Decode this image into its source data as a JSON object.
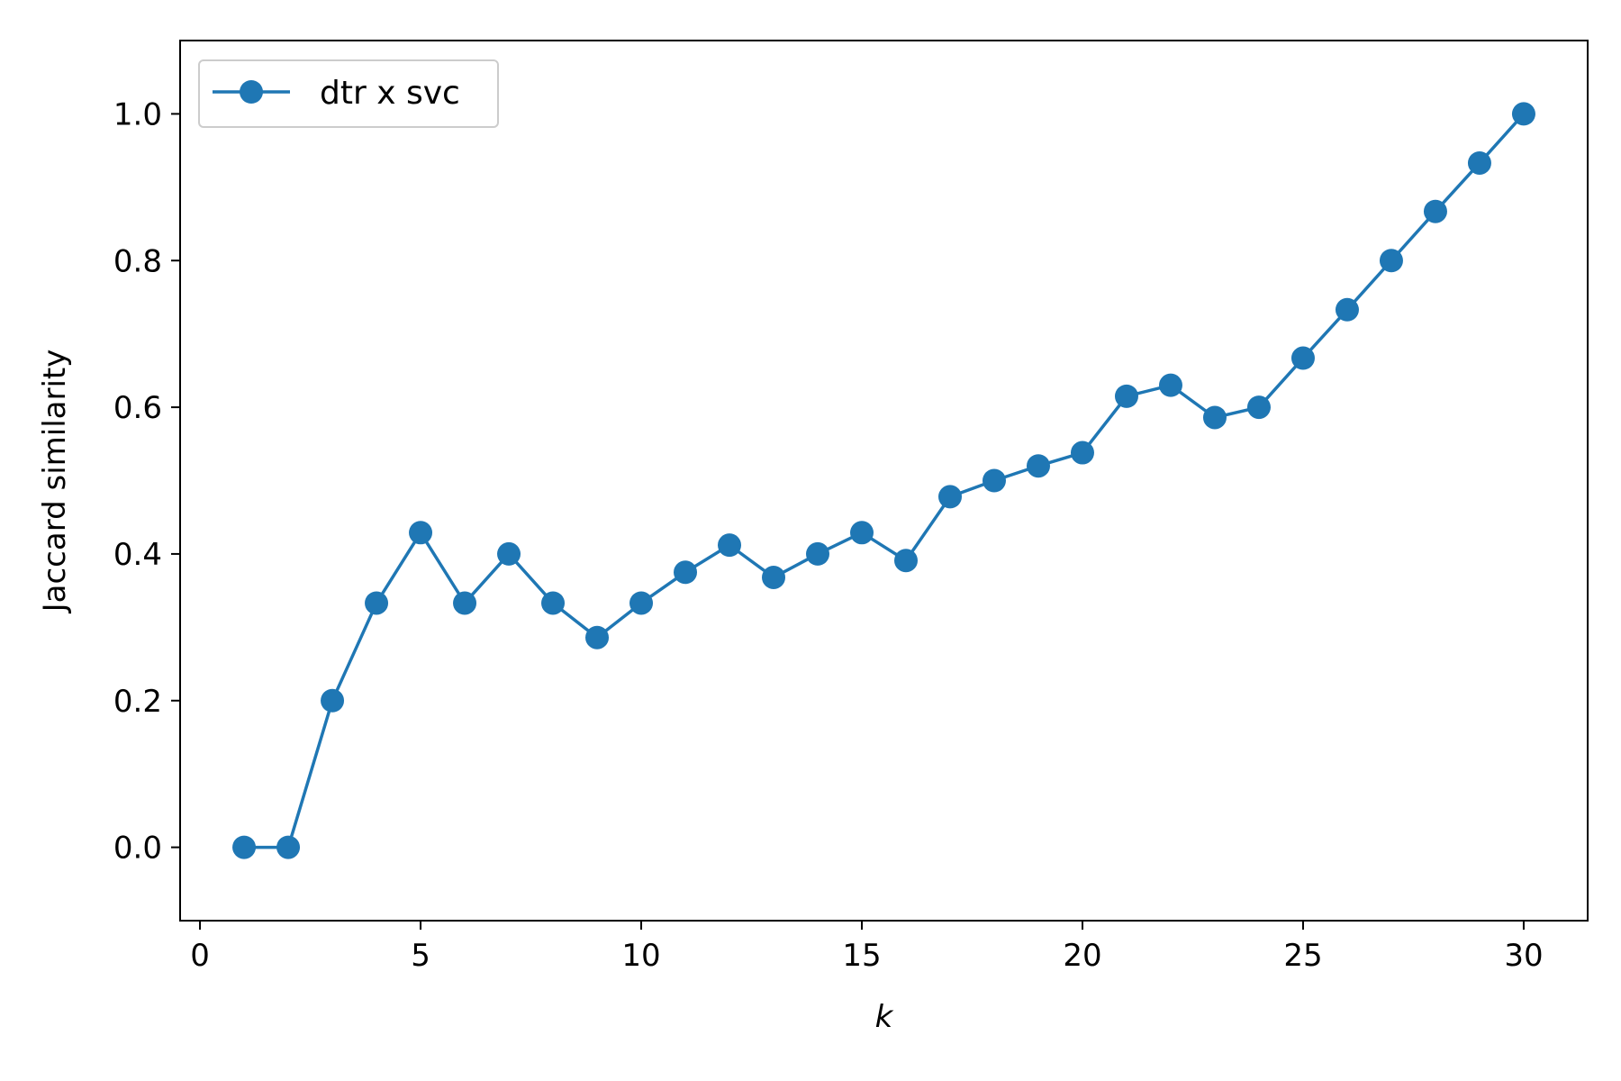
{
  "chart_data": {
    "type": "line",
    "title": "",
    "xlabel": "k",
    "ylabel": "Jaccard similarity",
    "xlim": [
      -0.45,
      31.45
    ],
    "ylim": [
      -0.1,
      1.1
    ],
    "xticks": [
      0,
      5,
      10,
      15,
      20,
      25,
      30
    ],
    "xtick_labels": [
      "0",
      "5",
      "10",
      "15",
      "20",
      "25",
      "30"
    ],
    "yticks": [
      0.0,
      0.2,
      0.4,
      0.6,
      0.8,
      1.0
    ],
    "ytick_labels": [
      "0.0",
      "0.2",
      "0.4",
      "0.6",
      "0.8",
      "1.0"
    ],
    "grid": false,
    "legend_position": "top-left",
    "series": [
      {
        "name": "dtr x svc",
        "color": "#1f77b4",
        "marker": "circle",
        "x": [
          1,
          2,
          3,
          4,
          5,
          6,
          7,
          8,
          9,
          10,
          11,
          12,
          13,
          14,
          15,
          16,
          17,
          18,
          19,
          20,
          21,
          22,
          23,
          24,
          25,
          26,
          27,
          28,
          29,
          30
        ],
        "y": [
          0.0,
          0.0,
          0.2,
          0.333,
          0.429,
          0.333,
          0.4,
          0.333,
          0.286,
          0.333,
          0.375,
          0.412,
          0.368,
          0.4,
          0.429,
          0.391,
          0.478,
          0.5,
          0.52,
          0.538,
          0.615,
          0.63,
          0.586,
          0.6,
          0.667,
          0.733,
          0.8,
          0.867,
          0.933,
          1.0
        ]
      }
    ]
  }
}
